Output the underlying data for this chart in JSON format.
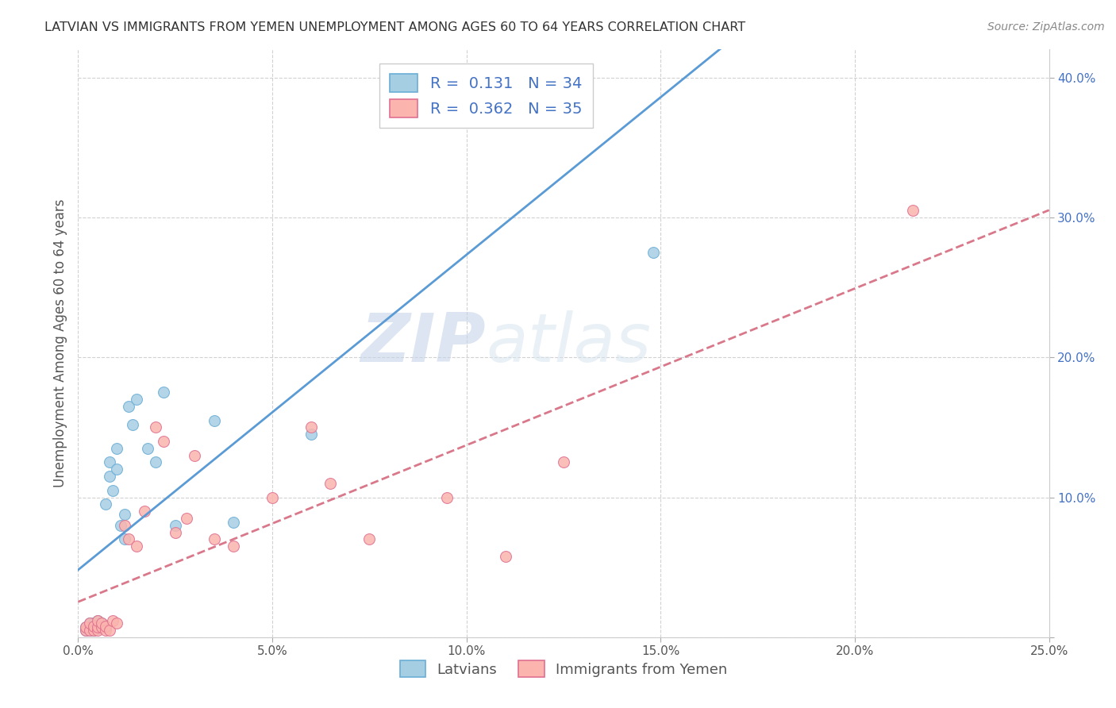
{
  "title": "LATVIAN VS IMMIGRANTS FROM YEMEN UNEMPLOYMENT AMONG AGES 60 TO 64 YEARS CORRELATION CHART",
  "source": "Source: ZipAtlas.com",
  "ylabel": "Unemployment Among Ages 60 to 64 years",
  "xlim": [
    0.0,
    0.25
  ],
  "ylim": [
    0.0,
    0.42
  ],
  "xticks": [
    0.0,
    0.05,
    0.1,
    0.15,
    0.2,
    0.25
  ],
  "xtick_labels": [
    "0.0%",
    "5.0%",
    "10.0%",
    "15.0%",
    "20.0%",
    "25.0%"
  ],
  "yticks": [
    0.0,
    0.1,
    0.2,
    0.3,
    0.4
  ],
  "ytick_labels": [
    "",
    "10.0%",
    "20.0%",
    "30.0%",
    "40.0%"
  ],
  "latvian_color": "#a6cee3",
  "latvian_edge_color": "#6baed6",
  "yemen_color": "#fbb4ae",
  "yemen_edge_color": "#e07090",
  "watermark_zip": "ZIP",
  "watermark_atlas": "atlas",
  "R_latvian": 0.131,
  "N_latvian": 34,
  "R_yemen": 0.362,
  "N_yemen": 35,
  "latvian_scatter_x": [
    0.002,
    0.002,
    0.003,
    0.003,
    0.003,
    0.004,
    0.004,
    0.004,
    0.005,
    0.005,
    0.005,
    0.006,
    0.006,
    0.007,
    0.008,
    0.008,
    0.009,
    0.01,
    0.01,
    0.011,
    0.012,
    0.012,
    0.013,
    0.014,
    0.015,
    0.018,
    0.02,
    0.022,
    0.025,
    0.035,
    0.04,
    0.06,
    0.1,
    0.148
  ],
  "latvian_scatter_y": [
    0.005,
    0.007,
    0.005,
    0.007,
    0.01,
    0.005,
    0.008,
    0.01,
    0.006,
    0.008,
    0.012,
    0.008,
    0.01,
    0.095,
    0.115,
    0.125,
    0.105,
    0.12,
    0.135,
    0.08,
    0.07,
    0.088,
    0.165,
    0.152,
    0.17,
    0.135,
    0.125,
    0.175,
    0.08,
    0.155,
    0.082,
    0.145,
    0.405,
    0.275
  ],
  "yemen_scatter_x": [
    0.002,
    0.002,
    0.003,
    0.003,
    0.004,
    0.004,
    0.005,
    0.005,
    0.005,
    0.006,
    0.006,
    0.007,
    0.007,
    0.008,
    0.009,
    0.01,
    0.012,
    0.013,
    0.015,
    0.017,
    0.02,
    0.022,
    0.025,
    0.028,
    0.03,
    0.035,
    0.04,
    0.05,
    0.06,
    0.065,
    0.075,
    0.095,
    0.11,
    0.125,
    0.215
  ],
  "yemen_scatter_y": [
    0.005,
    0.007,
    0.005,
    0.01,
    0.005,
    0.008,
    0.005,
    0.007,
    0.012,
    0.007,
    0.01,
    0.005,
    0.008,
    0.005,
    0.012,
    0.01,
    0.08,
    0.07,
    0.065,
    0.09,
    0.15,
    0.14,
    0.075,
    0.085,
    0.13,
    0.07,
    0.065,
    0.1,
    0.15,
    0.11,
    0.07,
    0.1,
    0.058,
    0.125,
    0.305
  ],
  "trend_color_latvian": "#5b9bd5",
  "trend_color_yemen": "#d9788a",
  "legend_label_color": "#4472c4",
  "tick_color_y": "#4472c4"
}
